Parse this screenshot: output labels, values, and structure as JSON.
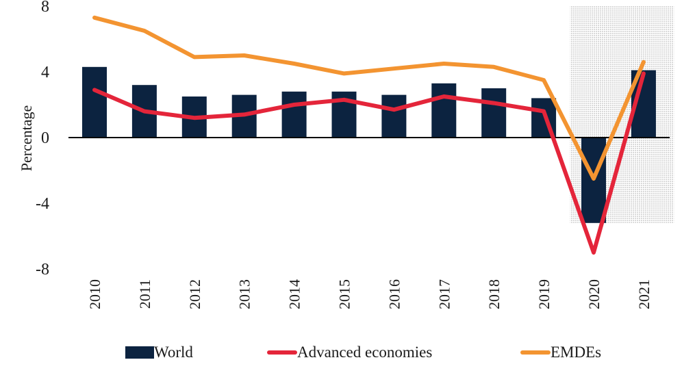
{
  "chart_data": {
    "type": "bar",
    "title": "",
    "xlabel": "",
    "ylabel": "Percentage",
    "ylim": [
      -8,
      8
    ],
    "yticks": [
      "8",
      "4",
      "0",
      "-4",
      "-8"
    ],
    "ytick_values": [
      8,
      4,
      0,
      -4,
      -8
    ],
    "categories": [
      "2010",
      "2011",
      "2012",
      "2013",
      "2014",
      "2015",
      "2016",
      "2017",
      "2018",
      "2019",
      "2020",
      "2021"
    ],
    "shaded_categories": [
      "2020",
      "2021"
    ],
    "series": [
      {
        "name": "World",
        "type": "bar",
        "color": "#0c2340",
        "values": [
          4.3,
          3.2,
          2.5,
          2.6,
          2.8,
          2.8,
          2.6,
          3.3,
          3.0,
          2.4,
          -5.2,
          4.1
        ]
      },
      {
        "name": "Advanced economies",
        "type": "line",
        "color": "#e4253a",
        "values": [
          2.9,
          1.6,
          1.2,
          1.4,
          2.0,
          2.3,
          1.7,
          2.5,
          2.1,
          1.6,
          -7.0,
          3.9
        ]
      },
      {
        "name": "EMDEs",
        "type": "line",
        "color": "#f39431",
        "values": [
          7.3,
          6.5,
          4.9,
          5.0,
          4.5,
          3.9,
          4.2,
          4.5,
          4.3,
          3.5,
          -2.5,
          4.6
        ]
      }
    ],
    "legend": {
      "placement": "bottom",
      "entries": [
        "World",
        "Advanced economies",
        "EMDEs"
      ]
    },
    "grid": false
  }
}
